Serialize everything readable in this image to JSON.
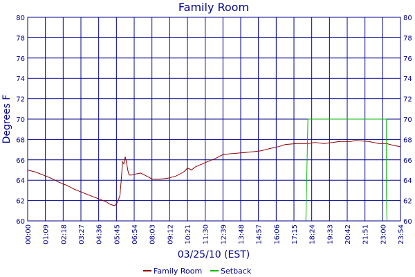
{
  "chart_data": {
    "type": "line",
    "title": "Family Room",
    "xlabel": "03/25/10 (EST)",
    "ylabel": "Degrees F",
    "ylim": [
      60,
      80
    ],
    "xlim": [
      "00:00",
      "23:54"
    ],
    "grid": true,
    "legend": "bottom",
    "x_ticks": [
      "00:00",
      "01:09",
      "02:18",
      "03:27",
      "04:36",
      "05:45",
      "06:54",
      "08:03",
      "09:12",
      "10:21",
      "11:30",
      "12:39",
      "13:48",
      "14:57",
      "16:06",
      "17:15",
      "18:24",
      "19:33",
      "20:42",
      "21:51",
      "23:00",
      "23:54"
    ],
    "y_ticks": [
      60,
      62,
      64,
      66,
      68,
      70,
      72,
      74,
      76,
      78,
      80
    ],
    "series": [
      {
        "name": "Family Room",
        "color": "#8B0000",
        "points": [
          [
            "00:00",
            65.0
          ],
          [
            "00:30",
            64.8
          ],
          [
            "01:00",
            64.5
          ],
          [
            "01:30",
            64.2
          ],
          [
            "02:00",
            63.8
          ],
          [
            "02:30",
            63.5
          ],
          [
            "03:00",
            63.1
          ],
          [
            "03:30",
            62.8
          ],
          [
            "04:00",
            62.5
          ],
          [
            "04:30",
            62.2
          ],
          [
            "05:00",
            61.9
          ],
          [
            "05:20",
            61.6
          ],
          [
            "05:35",
            61.5
          ],
          [
            "05:45",
            61.8
          ],
          [
            "05:55",
            62.5
          ],
          [
            "06:00",
            64.0
          ],
          [
            "06:05",
            65.8
          ],
          [
            "06:10",
            65.6
          ],
          [
            "06:15",
            66.3
          ],
          [
            "06:20",
            65.8
          ],
          [
            "06:25",
            65.0
          ],
          [
            "06:30",
            64.5
          ],
          [
            "06:40",
            64.5
          ],
          [
            "06:54",
            64.6
          ],
          [
            "07:15",
            64.7
          ],
          [
            "07:30",
            64.5
          ],
          [
            "07:45",
            64.3
          ],
          [
            "08:00",
            64.1
          ],
          [
            "08:30",
            64.1
          ],
          [
            "09:00",
            64.2
          ],
          [
            "09:30",
            64.4
          ],
          [
            "10:00",
            64.8
          ],
          [
            "10:15",
            65.2
          ],
          [
            "10:30",
            65.0
          ],
          [
            "10:45",
            65.3
          ],
          [
            "11:30",
            65.8
          ],
          [
            "12:00",
            66.1
          ],
          [
            "12:30",
            66.5
          ],
          [
            "13:00",
            66.6
          ],
          [
            "13:48",
            66.7
          ],
          [
            "14:30",
            66.8
          ],
          [
            "15:00",
            66.9
          ],
          [
            "15:30",
            67.1
          ],
          [
            "16:06",
            67.3
          ],
          [
            "16:30",
            67.5
          ],
          [
            "17:15",
            67.6
          ],
          [
            "18:00",
            67.6
          ],
          [
            "18:24",
            67.7
          ],
          [
            "19:00",
            67.6
          ],
          [
            "19:33",
            67.7
          ],
          [
            "20:00",
            67.8
          ],
          [
            "20:42",
            67.8
          ],
          [
            "21:00",
            67.9
          ],
          [
            "21:51",
            67.8
          ],
          [
            "22:30",
            67.6
          ],
          [
            "23:00",
            67.6
          ],
          [
            "23:30",
            67.4
          ],
          [
            "23:54",
            67.3
          ]
        ]
      },
      {
        "name": "Setback",
        "color": "#00BB00",
        "points": [
          [
            "00:00",
            60
          ],
          [
            "17:50",
            60
          ],
          [
            "17:58",
            70
          ],
          [
            "23:00",
            70
          ],
          [
            "23:00",
            62.5
          ],
          [
            "23:02",
            60
          ],
          [
            "23:54",
            60
          ]
        ]
      }
    ]
  }
}
